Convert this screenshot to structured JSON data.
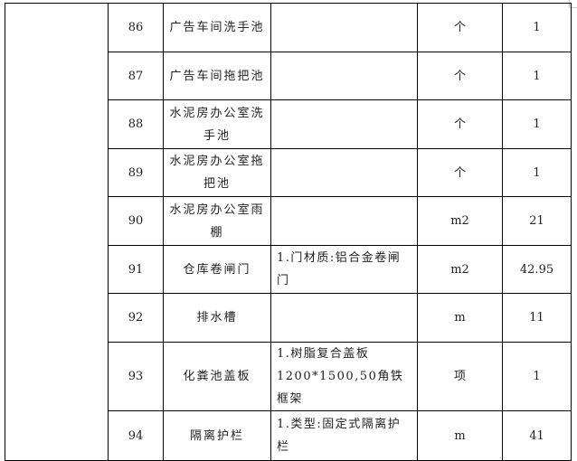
{
  "rows": [
    {
      "no": "86",
      "name": "广告车间洗手池",
      "spec": "",
      "unit": "个",
      "qty": "1"
    },
    {
      "no": "87",
      "name": "广告车间拖把池",
      "spec": "",
      "unit": "个",
      "qty": "1"
    },
    {
      "no": "88",
      "name": "水泥房办公室洗手池",
      "spec": "",
      "unit": "个",
      "qty": "1"
    },
    {
      "no": "89",
      "name": "水泥房办公室拖把池",
      "spec": "",
      "unit": "个",
      "qty": "1"
    },
    {
      "no": "90",
      "name": "水泥房办公室雨棚",
      "spec": "",
      "unit": "m2",
      "qty": "21"
    },
    {
      "no": "91",
      "name": "仓库卷闸门",
      "spec": "1.门材质:铝合金卷闸门",
      "unit": "m2",
      "qty": "42.95"
    },
    {
      "no": "92",
      "name": "排水槽",
      "spec": "",
      "unit": "m",
      "qty": "11"
    },
    {
      "no": "93",
      "name": "化粪池盖板",
      "spec": "1.树脂复合盖板1200*1500,50角铁框架",
      "unit": "项",
      "qty": "1"
    },
    {
      "no": "94",
      "name": "隔离护栏",
      "spec": "1.类型:固定式隔离护栏",
      "unit": "m",
      "qty": "41"
    }
  ]
}
